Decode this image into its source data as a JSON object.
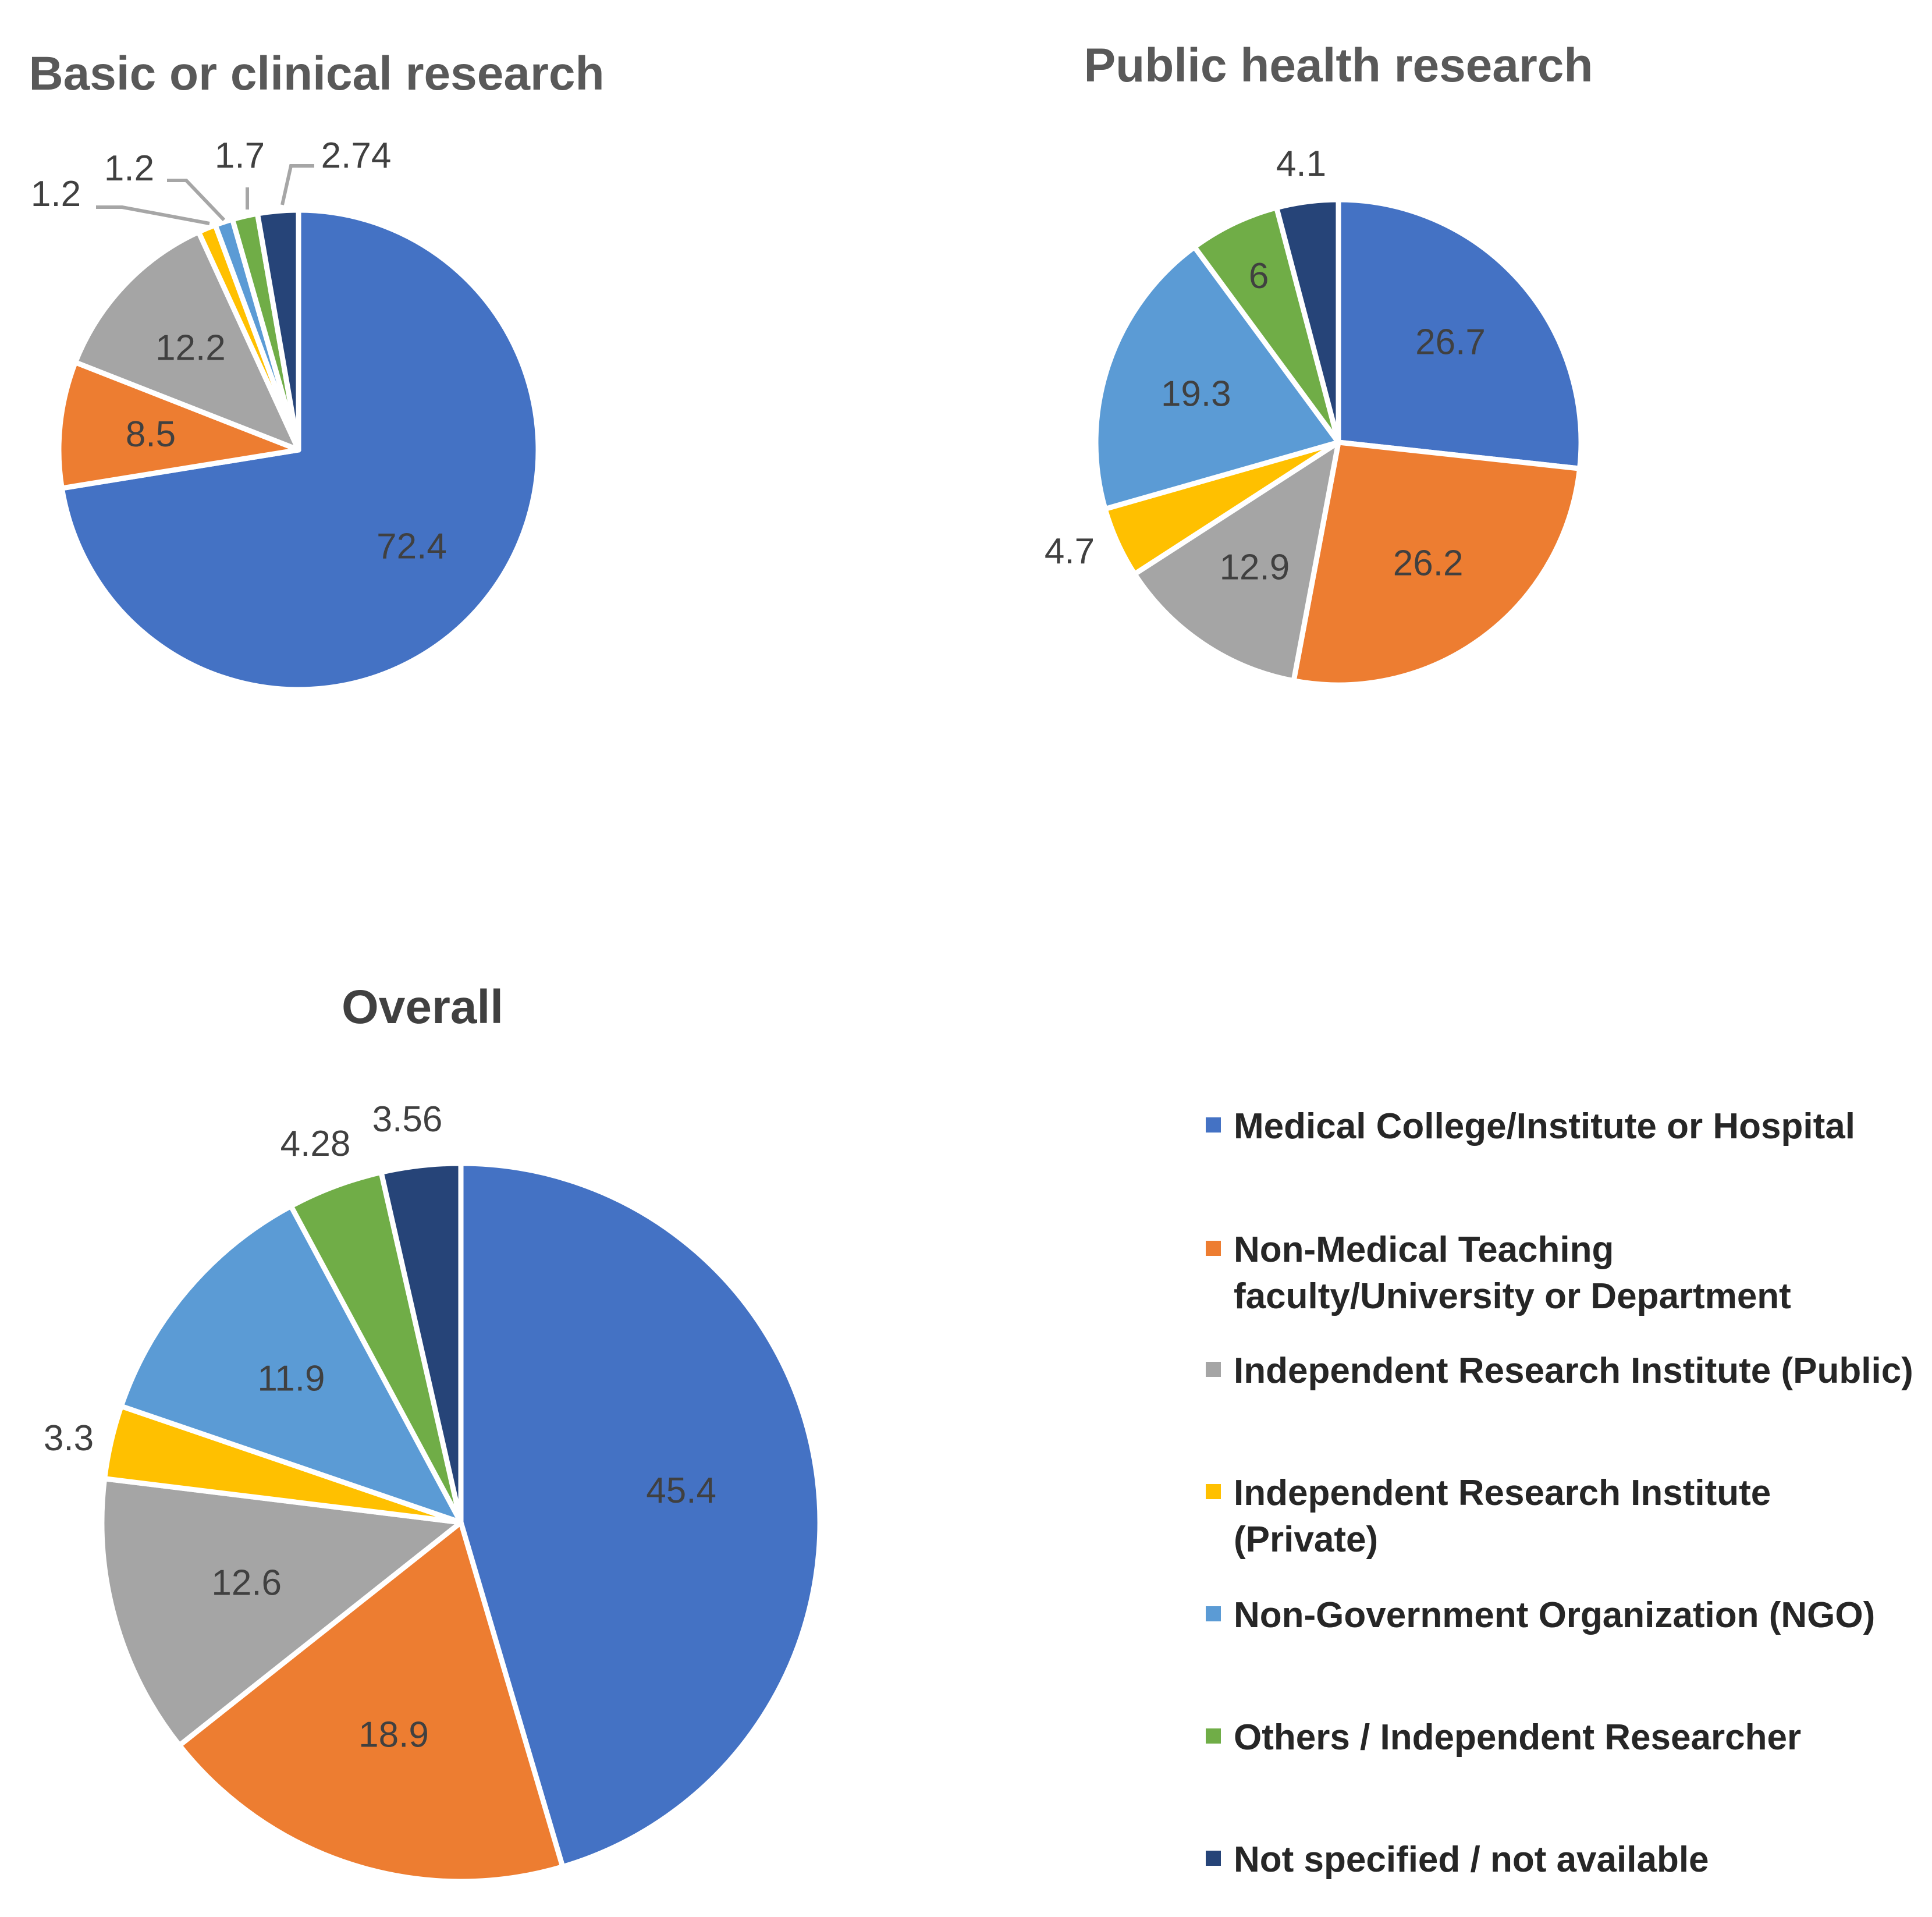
{
  "colors": [
    "#4472C4",
    "#ED7D31",
    "#A5A5A5",
    "#FFC000",
    "#5B9BD5",
    "#70AD47",
    "#264478"
  ],
  "legend": {
    "items": [
      {
        "lines": [
          "Medical College/Institute or Hospital"
        ]
      },
      {
        "lines": [
          "Non-Medical Teaching",
          "faculty/University or Department"
        ]
      },
      {
        "lines": [
          "Independent Research Institute (Public)"
        ]
      },
      {
        "lines": [
          "Independent Research Institute",
          "(Private)"
        ]
      },
      {
        "lines": [
          "Non-Government Organization (NGO)"
        ]
      },
      {
        "lines": [
          "Others / Independent Researcher"
        ]
      },
      {
        "lines": [
          "Not specified / not available"
        ]
      }
    ]
  },
  "chart_data": [
    {
      "type": "pie",
      "title": "Basic or clinical research",
      "categories": [
        "Medical College/Institute or Hospital",
        "Non-Medical Teaching faculty/University or Department",
        "Independent Research Institute (Public)",
        "Independent Research Institute (Private)",
        "Non-Government Organization (NGO)",
        "Others / Independent Researcher",
        "Not specified / not available"
      ],
      "values": [
        72.4,
        8.5,
        12.2,
        1.2,
        1.2,
        1.7,
        2.74
      ],
      "labels": [
        "72.4",
        "8.5",
        "12.2",
        "1.2",
        "1.2",
        "1.7",
        "2.74"
      ],
      "legend": "shared, right"
    },
    {
      "type": "pie",
      "title": "Public health research",
      "categories": [
        "Medical College/Institute or Hospital",
        "Non-Medical Teaching faculty/University or Department",
        "Independent Research Institute (Public)",
        "Independent Research Institute (Private)",
        "Non-Government Organization (NGO)",
        "Others / Independent Researcher",
        "Not specified / not available"
      ],
      "values": [
        26.7,
        26.2,
        12.9,
        4.7,
        19.3,
        6,
        4.1
      ],
      "labels": [
        "26.7",
        "26.2",
        "12.9",
        "4.7",
        "19.3",
        "6",
        "4.1"
      ],
      "legend": "shared, right"
    },
    {
      "type": "pie",
      "title": "Overall",
      "categories": [
        "Medical College/Institute or Hospital",
        "Non-Medical Teaching faculty/University or Department",
        "Independent Research Institute (Public)",
        "Independent Research Institute (Private)",
        "Non-Government Organization (NGO)",
        "Others / Independent Researcher",
        "Not specified / not available"
      ],
      "values": [
        45.4,
        18.9,
        12.6,
        3.3,
        11.9,
        4.28,
        3.56
      ],
      "labels": [
        "45.4",
        "18.9",
        "12.6",
        "3.3",
        "11.9",
        "4.28",
        "3.56"
      ],
      "legend": "shared, right"
    }
  ]
}
